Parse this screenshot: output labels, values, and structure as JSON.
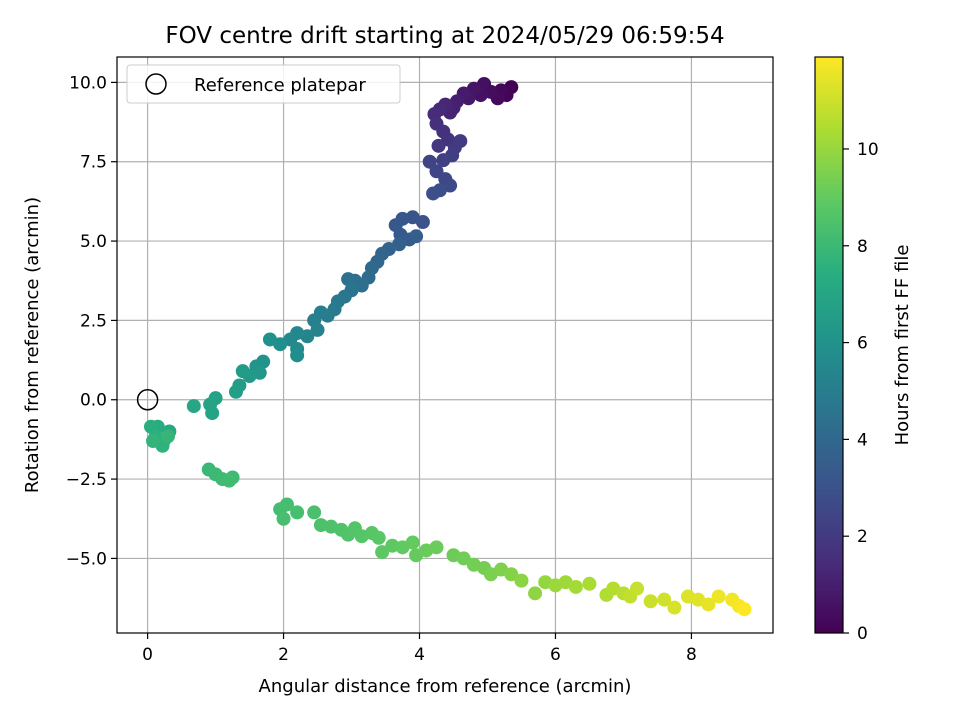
{
  "chart_data": {
    "type": "scatter",
    "title": "FOV centre drift starting at 2024/05/29 06:59:54",
    "xlabel": "Angular distance from reference (arcmin)",
    "ylabel": "Rotation from reference (arcmin)",
    "xlim": [
      -0.45,
      9.2
    ],
    "ylim": [
      -7.35,
      10.8
    ],
    "xticks": [
      0,
      2,
      4,
      6,
      8
    ],
    "xtick_labels": [
      "0",
      "2",
      "4",
      "6",
      "8"
    ],
    "yticks": [
      -5.0,
      -2.5,
      0.0,
      2.5,
      5.0,
      7.5,
      10.0
    ],
    "ytick_labels": [
      "−5.0",
      "−2.5",
      "0.0",
      "2.5",
      "5.0",
      "7.5",
      "10.0"
    ],
    "grid": true,
    "legend": {
      "position": "upper-left",
      "entries": [
        {
          "label": "Reference platepar",
          "marker": "open-circle",
          "color": "#000000"
        }
      ]
    },
    "reference_point": {
      "x": 0,
      "y": 0
    },
    "colorbar": {
      "label": "Hours from first FF file",
      "colormap": "viridis",
      "range": [
        0,
        11.9
      ],
      "ticks": [
        0,
        2,
        4,
        6,
        8,
        10
      ],
      "tick_labels": [
        "0",
        "2",
        "4",
        "6",
        "8",
        "10"
      ]
    },
    "points": [
      {
        "x": 5.35,
        "y": 9.85,
        "h": 0.0
      },
      {
        "x": 5.28,
        "y": 9.6,
        "h": 0.1
      },
      {
        "x": 5.2,
        "y": 9.75,
        "h": 0.2
      },
      {
        "x": 5.15,
        "y": 9.5,
        "h": 0.3
      },
      {
        "x": 5.05,
        "y": 9.7,
        "h": 0.4
      },
      {
        "x": 4.95,
        "y": 9.95,
        "h": 0.5
      },
      {
        "x": 4.9,
        "y": 9.6,
        "h": 0.6
      },
      {
        "x": 4.8,
        "y": 9.8,
        "h": 0.7
      },
      {
        "x": 4.72,
        "y": 9.5,
        "h": 0.8
      },
      {
        "x": 4.65,
        "y": 9.65,
        "h": 0.9
      },
      {
        "x": 4.55,
        "y": 9.4,
        "h": 1.0
      },
      {
        "x": 4.5,
        "y": 9.2,
        "h": 1.1
      },
      {
        "x": 4.45,
        "y": 9.05,
        "h": 1.2
      },
      {
        "x": 4.38,
        "y": 9.3,
        "h": 1.3
      },
      {
        "x": 4.3,
        "y": 9.15,
        "h": 1.4
      },
      {
        "x": 4.22,
        "y": 9.0,
        "h": 1.5
      },
      {
        "x": 4.25,
        "y": 8.7,
        "h": 1.6
      },
      {
        "x": 4.35,
        "y": 8.45,
        "h": 1.7
      },
      {
        "x": 4.42,
        "y": 8.2,
        "h": 1.8
      },
      {
        "x": 4.28,
        "y": 8.0,
        "h": 1.9
      },
      {
        "x": 4.52,
        "y": 7.95,
        "h": 2.0
      },
      {
        "x": 4.6,
        "y": 8.15,
        "h": 2.1
      },
      {
        "x": 4.48,
        "y": 7.7,
        "h": 2.2
      },
      {
        "x": 4.35,
        "y": 7.55,
        "h": 2.3
      },
      {
        "x": 4.15,
        "y": 7.5,
        "h": 2.4
      },
      {
        "x": 4.25,
        "y": 7.2,
        "h": 2.5
      },
      {
        "x": 4.38,
        "y": 6.95,
        "h": 2.6
      },
      {
        "x": 4.45,
        "y": 6.75,
        "h": 2.7
      },
      {
        "x": 4.3,
        "y": 6.6,
        "h": 2.8
      },
      {
        "x": 4.2,
        "y": 6.5,
        "h": 2.9
      },
      {
        "x": 4.05,
        "y": 5.6,
        "h": 3.0
      },
      {
        "x": 3.9,
        "y": 5.75,
        "h": 3.1
      },
      {
        "x": 3.75,
        "y": 5.7,
        "h": 3.2
      },
      {
        "x": 3.65,
        "y": 5.5,
        "h": 3.3
      },
      {
        "x": 3.72,
        "y": 5.2,
        "h": 3.4
      },
      {
        "x": 3.85,
        "y": 5.05,
        "h": 3.5
      },
      {
        "x": 3.95,
        "y": 5.15,
        "h": 3.6
      },
      {
        "x": 3.7,
        "y": 4.9,
        "h": 3.7
      },
      {
        "x": 3.55,
        "y": 4.75,
        "h": 3.8
      },
      {
        "x": 3.45,
        "y": 4.6,
        "h": 3.9
      },
      {
        "x": 3.38,
        "y": 4.35,
        "h": 4.0
      },
      {
        "x": 3.3,
        "y": 4.15,
        "h": 4.1
      },
      {
        "x": 3.25,
        "y": 3.85,
        "h": 4.2
      },
      {
        "x": 3.15,
        "y": 3.6,
        "h": 4.3
      },
      {
        "x": 3.05,
        "y": 3.75,
        "h": 4.4
      },
      {
        "x": 2.95,
        "y": 3.8,
        "h": 4.5
      },
      {
        "x": 3.0,
        "y": 3.45,
        "h": 4.6
      },
      {
        "x": 2.9,
        "y": 3.25,
        "h": 4.7
      },
      {
        "x": 2.8,
        "y": 3.1,
        "h": 4.8
      },
      {
        "x": 2.75,
        "y": 2.85,
        "h": 4.9
      },
      {
        "x": 2.65,
        "y": 2.65,
        "h": 5.0
      },
      {
        "x": 2.55,
        "y": 2.75,
        "h": 5.1
      },
      {
        "x": 2.45,
        "y": 2.5,
        "h": 5.2
      },
      {
        "x": 2.5,
        "y": 2.2,
        "h": 5.3
      },
      {
        "x": 2.35,
        "y": 2.0,
        "h": 5.4
      },
      {
        "x": 2.2,
        "y": 2.1,
        "h": 5.5
      },
      {
        "x": 2.1,
        "y": 1.9,
        "h": 5.6
      },
      {
        "x": 2.2,
        "y": 1.6,
        "h": 5.7
      },
      {
        "x": 2.2,
        "y": 1.4,
        "h": 5.8
      },
      {
        "x": 1.95,
        "y": 1.75,
        "h": 5.9
      },
      {
        "x": 1.8,
        "y": 1.9,
        "h": 6.0
      },
      {
        "x": 1.7,
        "y": 1.2,
        "h": 6.1
      },
      {
        "x": 1.6,
        "y": 1.05,
        "h": 6.2
      },
      {
        "x": 1.65,
        "y": 0.85,
        "h": 6.3
      },
      {
        "x": 1.5,
        "y": 0.75,
        "h": 6.4
      },
      {
        "x": 1.4,
        "y": 0.9,
        "h": 6.5
      },
      {
        "x": 1.35,
        "y": 0.45,
        "h": 6.6
      },
      {
        "x": 1.3,
        "y": 0.25,
        "h": 6.7
      },
      {
        "x": 1.0,
        "y": 0.05,
        "h": 6.8
      },
      {
        "x": 0.92,
        "y": -0.15,
        "h": 6.9
      },
      {
        "x": 0.95,
        "y": -0.42,
        "h": 7.0
      },
      {
        "x": 0.68,
        "y": -0.2,
        "h": 7.1
      },
      {
        "x": 0.32,
        "y": -1.0,
        "h": 7.2
      },
      {
        "x": 0.25,
        "y": -1.25,
        "h": 7.3
      },
      {
        "x": 0.15,
        "y": -0.85,
        "h": 7.4
      },
      {
        "x": 0.05,
        "y": -0.85,
        "h": 7.5
      },
      {
        "x": 0.12,
        "y": -1.15,
        "h": 7.6
      },
      {
        "x": 0.22,
        "y": -1.45,
        "h": 7.7
      },
      {
        "x": 0.08,
        "y": -1.3,
        "h": 7.8
      },
      {
        "x": 0.3,
        "y": -1.15,
        "h": 7.9
      },
      {
        "x": 0.9,
        "y": -2.2,
        "h": 8.0
      },
      {
        "x": 1.0,
        "y": -2.35,
        "h": 8.05
      },
      {
        "x": 1.1,
        "y": -2.5,
        "h": 8.1
      },
      {
        "x": 1.25,
        "y": -2.45,
        "h": 8.15
      },
      {
        "x": 1.2,
        "y": -2.55,
        "h": 8.2
      },
      {
        "x": 1.95,
        "y": -3.45,
        "h": 8.25
      },
      {
        "x": 2.05,
        "y": -3.3,
        "h": 8.3
      },
      {
        "x": 2.2,
        "y": -3.55,
        "h": 8.35
      },
      {
        "x": 2.0,
        "y": -3.75,
        "h": 8.4
      },
      {
        "x": 2.45,
        "y": -3.55,
        "h": 8.45
      },
      {
        "x": 2.55,
        "y": -3.95,
        "h": 8.5
      },
      {
        "x": 2.7,
        "y": -4.0,
        "h": 8.55
      },
      {
        "x": 2.85,
        "y": -4.1,
        "h": 8.6
      },
      {
        "x": 2.95,
        "y": -4.25,
        "h": 8.65
      },
      {
        "x": 3.05,
        "y": -4.05,
        "h": 8.7
      },
      {
        "x": 3.15,
        "y": -4.3,
        "h": 8.75
      },
      {
        "x": 3.3,
        "y": -4.2,
        "h": 8.8
      },
      {
        "x": 3.4,
        "y": -4.35,
        "h": 8.85
      },
      {
        "x": 3.45,
        "y": -4.8,
        "h": 8.9
      },
      {
        "x": 3.6,
        "y": -4.6,
        "h": 8.95
      },
      {
        "x": 3.75,
        "y": -4.65,
        "h": 9.0
      },
      {
        "x": 3.9,
        "y": -4.5,
        "h": 9.05
      },
      {
        "x": 3.95,
        "y": -4.9,
        "h": 9.1
      },
      {
        "x": 4.1,
        "y": -4.75,
        "h": 9.15
      },
      {
        "x": 4.25,
        "y": -4.65,
        "h": 9.2
      },
      {
        "x": 4.5,
        "y": -4.9,
        "h": 9.25
      },
      {
        "x": 4.65,
        "y": -5.0,
        "h": 9.3
      },
      {
        "x": 4.8,
        "y": -5.2,
        "h": 9.35
      },
      {
        "x": 4.95,
        "y": -5.3,
        "h": 9.4
      },
      {
        "x": 5.05,
        "y": -5.5,
        "h": 9.5
      },
      {
        "x": 5.2,
        "y": -5.35,
        "h": 9.6
      },
      {
        "x": 5.35,
        "y": -5.5,
        "h": 9.7
      },
      {
        "x": 5.5,
        "y": -5.7,
        "h": 9.8
      },
      {
        "x": 5.7,
        "y": -6.1,
        "h": 9.9
      },
      {
        "x": 5.85,
        "y": -5.75,
        "h": 10.0
      },
      {
        "x": 6.0,
        "y": -5.85,
        "h": 10.1
      },
      {
        "x": 6.15,
        "y": -5.75,
        "h": 10.2
      },
      {
        "x": 6.3,
        "y": -5.9,
        "h": 10.3
      },
      {
        "x": 6.5,
        "y": -5.8,
        "h": 10.4
      },
      {
        "x": 6.75,
        "y": -6.15,
        "h": 10.5
      },
      {
        "x": 6.85,
        "y": -5.95,
        "h": 10.6
      },
      {
        "x": 7.0,
        "y": -6.1,
        "h": 10.7
      },
      {
        "x": 7.1,
        "y": -6.2,
        "h": 10.8
      },
      {
        "x": 7.2,
        "y": -5.95,
        "h": 10.9
      },
      {
        "x": 7.4,
        "y": -6.35,
        "h": 11.0
      },
      {
        "x": 7.6,
        "y": -6.3,
        "h": 11.1
      },
      {
        "x": 7.75,
        "y": -6.55,
        "h": 11.2
      },
      {
        "x": 7.95,
        "y": -6.2,
        "h": 11.3
      },
      {
        "x": 8.1,
        "y": -6.3,
        "h": 11.4
      },
      {
        "x": 8.25,
        "y": -6.45,
        "h": 11.5
      },
      {
        "x": 8.4,
        "y": -6.2,
        "h": 11.6
      },
      {
        "x": 8.6,
        "y": -6.3,
        "h": 11.7
      },
      {
        "x": 8.7,
        "y": -6.5,
        "h": 11.8
      },
      {
        "x": 8.78,
        "y": -6.6,
        "h": 11.9
      }
    ]
  }
}
